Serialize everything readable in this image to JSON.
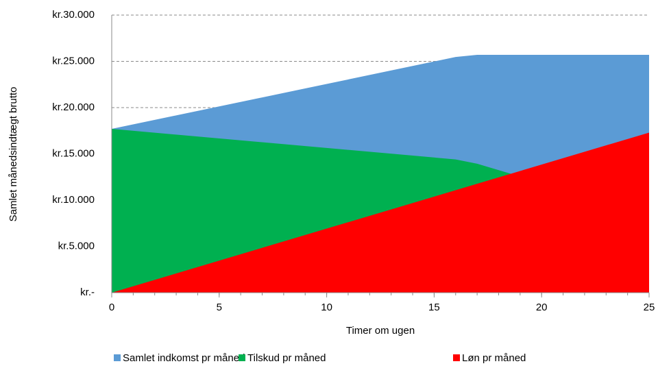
{
  "chart_data": {
    "type": "area",
    "x": [
      0,
      16,
      17,
      25
    ],
    "xlim": [
      0,
      25
    ],
    "xticks": [
      0,
      5,
      10,
      15,
      20,
      25
    ],
    "ylim": [
      0,
      30000
    ],
    "yticks": [
      {
        "value": 0,
        "label": "kr.-"
      },
      {
        "value": 5000,
        "label": "kr.5.000"
      },
      {
        "value": 10000,
        "label": "kr.10.000"
      },
      {
        "value": 15000,
        "label": "kr.15.000"
      },
      {
        "value": 20000,
        "label": "kr.20.000"
      },
      {
        "value": 25000,
        "label": "kr.25.000"
      },
      {
        "value": 30000,
        "label": "kr.30.000"
      }
    ],
    "grid": true,
    "xlabel": "Timer om ugen",
    "ylabel": "Samlet månedsindtægt brutto",
    "legend": "bottom",
    "series": [
      {
        "name": "Samlet indkomst pr måned",
        "color": "#5b9bd5",
        "values": [
          17700,
          25472,
          25700,
          25700
        ]
      },
      {
        "name": "Tilskud pr måned",
        "color": "#00b050",
        "values": [
          17700,
          14400,
          13936,
          8400
        ]
      },
      {
        "name": "Løn pr måned",
        "color": "#ff0000",
        "values": [
          0,
          11072,
          11764,
          17300
        ]
      }
    ]
  }
}
